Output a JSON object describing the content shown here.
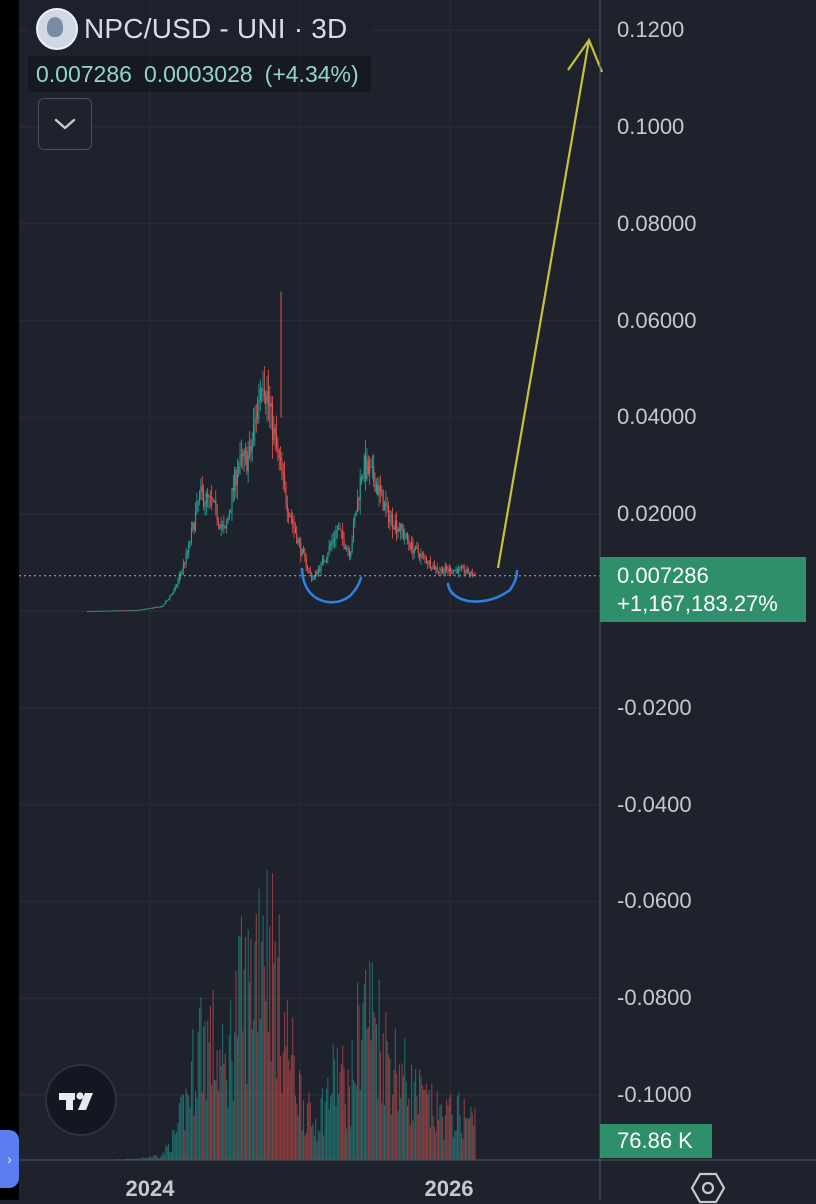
{
  "header": {
    "title": "NPC/USD - UNI · 3D",
    "last_price": "0.007286",
    "change_abs": "0.0003028",
    "change_pct": "(+4.34%)",
    "logo_icon": "npc-token-logo-icon"
  },
  "controls": {
    "collapse_icon": "chevron-down-icon",
    "settings_icon": "gear-hexagon-icon",
    "brand_icon": "tradingview-logo-icon",
    "side_tab_icon": "chevron-right-icon"
  },
  "price_axis": {
    "ticks": [
      "0.1200",
      "0.1000",
      "0.08000",
      "0.06000",
      "0.04000",
      "0.02000",
      "-0.0200",
      "-0.0400",
      "-0.0600",
      "-0.0800",
      "-0.1000"
    ]
  },
  "price_tag": {
    "price": "0.007286",
    "change": "+1,167,183.27%"
  },
  "volume_tag": {
    "value": "76.86 K"
  },
  "time_axis": {
    "labels": [
      "2024",
      "2026"
    ]
  },
  "colors": {
    "background": "#1e222d",
    "up": "#26a69a",
    "down": "#ef5350",
    "accent_green": "#2f8f6b",
    "annotation_arrow": "#c9c13a",
    "annotation_curve": "#2f7fe0"
  },
  "chart_data": {
    "type": "candlestick",
    "symbol": "NPC/USD",
    "exchange": "UNI",
    "interval": "3D",
    "ylim": [
      -0.11,
      0.125
    ],
    "grid": true,
    "x_axis_ticks": [
      "2024",
      "2026"
    ],
    "last_price": 0.007286,
    "price_path": [
      {
        "t": "2023-08",
        "close": 0.0
      },
      {
        "t": "2023-12",
        "close": 0.0002
      },
      {
        "t": "2024-02",
        "close": 0.001
      },
      {
        "t": "2024-03",
        "close": 0.0045
      },
      {
        "t": "2024-04",
        "close": 0.012
      },
      {
        "t": "2024-05",
        "close": 0.024
      },
      {
        "t": "2024-06",
        "close": 0.022
      },
      {
        "t": "2024-07",
        "close": 0.016
      },
      {
        "t": "2024-08",
        "close": 0.03
      },
      {
        "t": "2024-09",
        "close": 0.032
      },
      {
        "t": "2024-10",
        "close": 0.05
      },
      {
        "t": "2024-11",
        "close": 0.035
      },
      {
        "t": "2024-12",
        "close": 0.022
      },
      {
        "t": "2025-01",
        "close": 0.013
      },
      {
        "t": "2025-02",
        "close": 0.0065
      },
      {
        "t": "2025-03",
        "close": 0.011
      },
      {
        "t": "2025-04",
        "close": 0.017
      },
      {
        "t": "2025-05",
        "close": 0.012
      },
      {
        "t": "2025-06",
        "close": 0.03
      },
      {
        "t": "2025-07",
        "close": 0.027
      },
      {
        "t": "2025-08",
        "close": 0.02
      },
      {
        "t": "2025-09",
        "close": 0.017
      },
      {
        "t": "2025-10",
        "close": 0.013
      },
      {
        "t": "2025-12",
        "close": 0.0085
      },
      {
        "t": "2026-02",
        "close": 0.0085
      },
      {
        "t": "2026-03",
        "close": 0.007286
      }
    ],
    "volume": {
      "last": 76860
    }
  }
}
